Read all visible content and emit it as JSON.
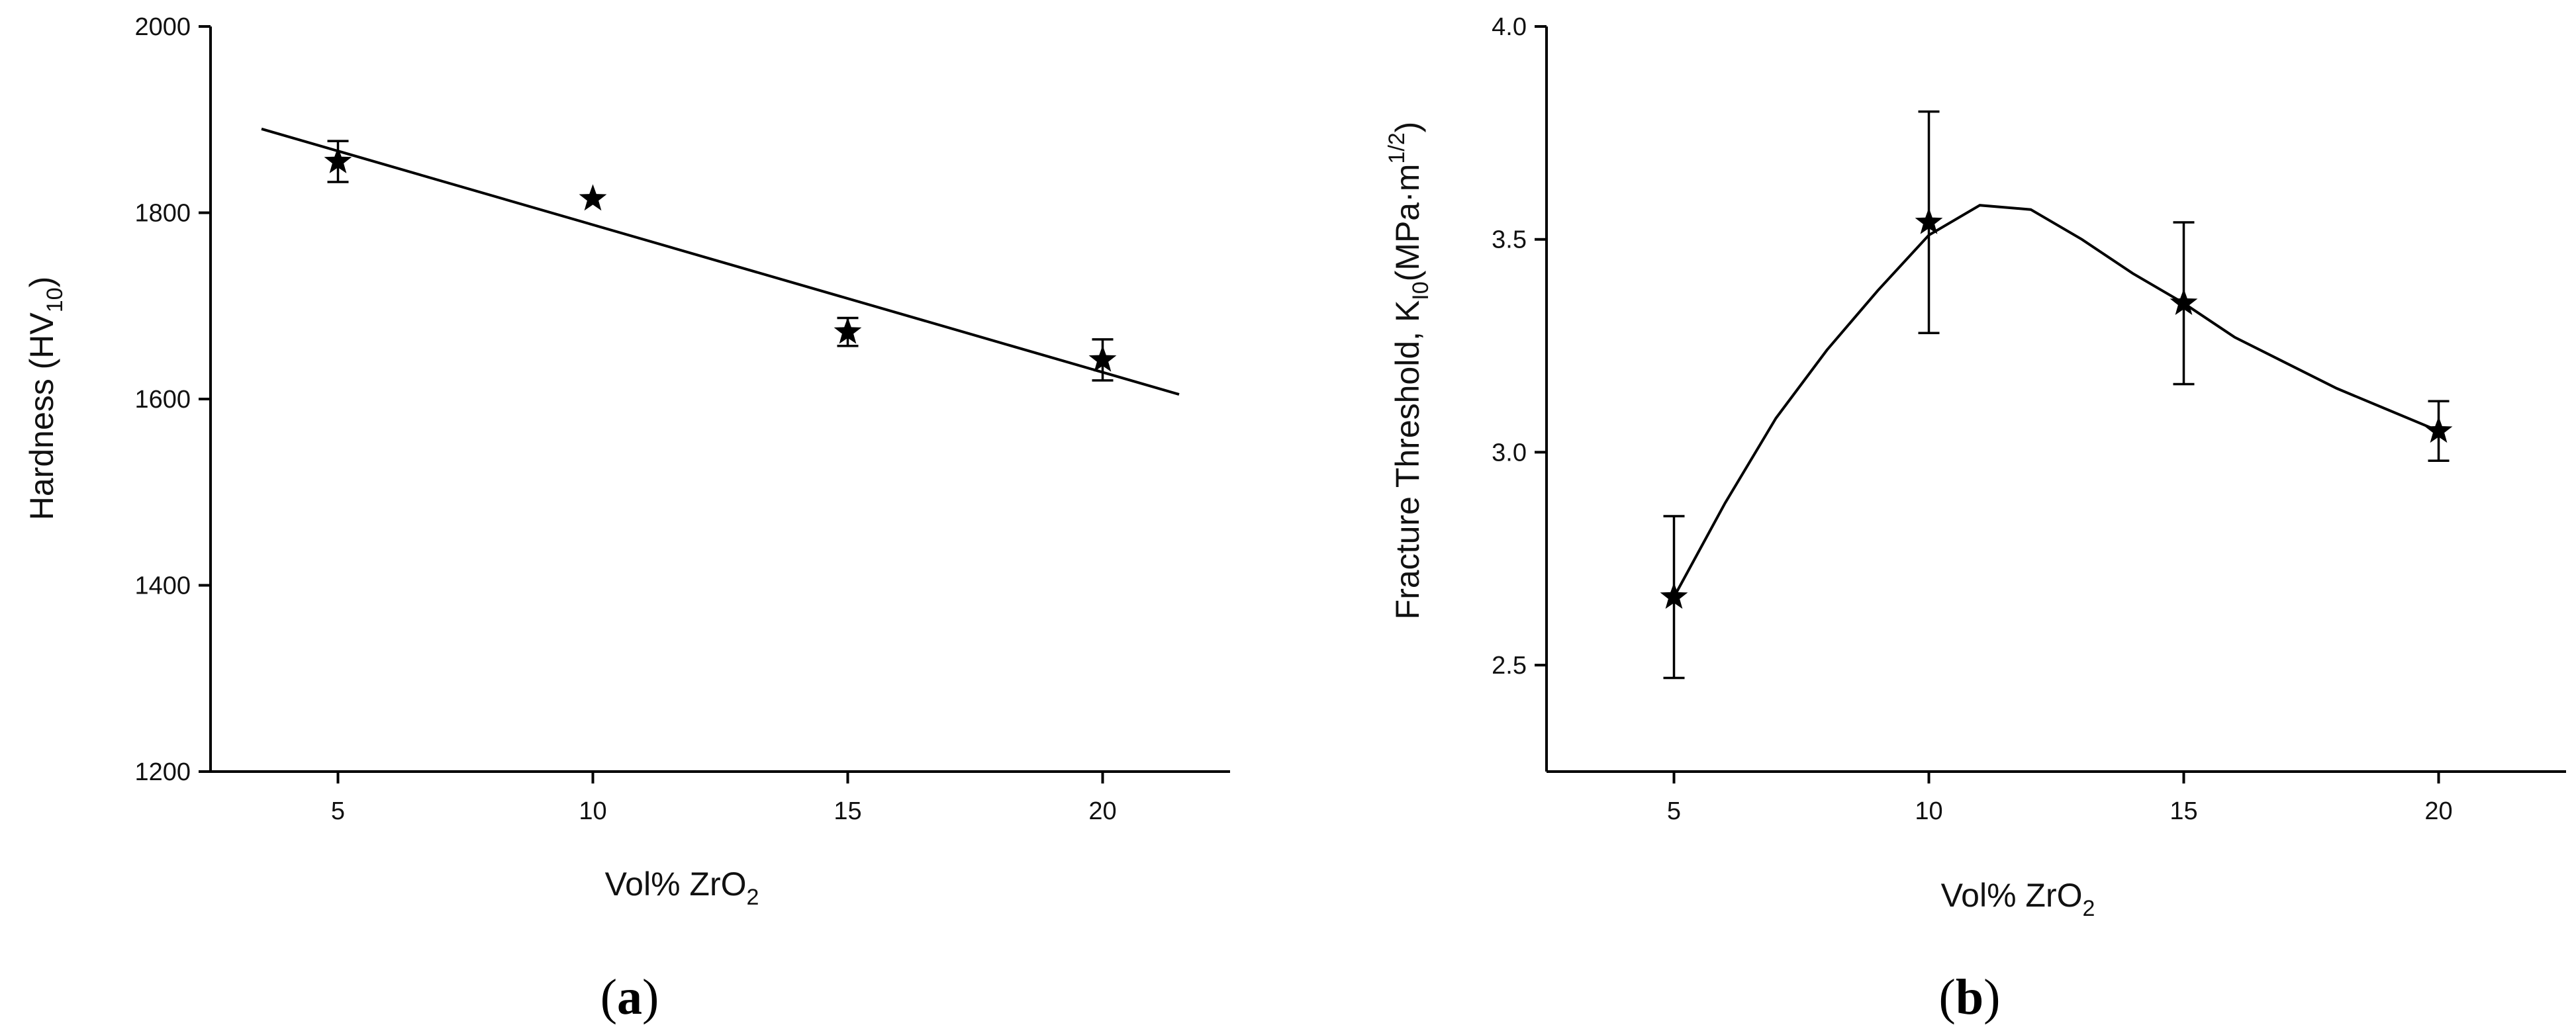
{
  "chart_data": [
    {
      "type": "scatter",
      "panel_label": "a",
      "xlabel": "Vol% ZrO",
      "xlabel_sub": "2",
      "ylabel": "Hardness (HV",
      "ylabel_sub": "10",
      "ylabel_end": ")",
      "xlim": [
        2.5,
        22.5
      ],
      "ylim": [
        1200,
        2000
      ],
      "xticks": [
        5,
        10,
        15,
        20
      ],
      "yticks": [
        1200,
        1400,
        1600,
        1800,
        2000
      ],
      "grid": false,
      "series": [
        {
          "marker": "star",
          "x": [
            5,
            10,
            15,
            20
          ],
          "y": [
            1855,
            1815,
            1672,
            1642
          ],
          "yerr": [
            22,
            0,
            15,
            22
          ]
        }
      ],
      "fit_line": {
        "x": [
          3.5,
          21.5
        ],
        "y": [
          1890,
          1605
        ]
      }
    },
    {
      "type": "line",
      "panel_label": "b",
      "xlabel": "Vol% ZrO",
      "xlabel_sub": "2",
      "ylabel": "Fracture Threshold, K",
      "ylabel_sub": "I0",
      "ylabel_mid": "(MPa·m",
      "ylabel_sup": "1/2",
      "ylabel_end": ")",
      "xlim": [
        2.5,
        22.5
      ],
      "ylim": [
        2.25,
        4.0
      ],
      "xticks": [
        5,
        10,
        15,
        20
      ],
      "yticks": [
        2.5,
        3.0,
        3.5,
        4.0
      ],
      "ytick_labels": [
        "2.5",
        "3.0",
        "3.5",
        "4.0"
      ],
      "grid": false,
      "series": [
        {
          "marker": "star",
          "x": [
            5,
            10,
            15,
            20
          ],
          "y": [
            2.66,
            3.54,
            3.35,
            3.05
          ],
          "yerr": [
            0.19,
            0.26,
            0.19,
            0.07
          ]
        }
      ],
      "smooth_curve": {
        "x": [
          5,
          6,
          7,
          8,
          9,
          10,
          11,
          12,
          13,
          14,
          15,
          16,
          17,
          18,
          19,
          20
        ],
        "y": [
          2.66,
          2.88,
          3.08,
          3.24,
          3.38,
          3.51,
          3.58,
          3.57,
          3.5,
          3.42,
          3.35,
          3.27,
          3.21,
          3.15,
          3.1,
          3.05
        ]
      }
    }
  ]
}
